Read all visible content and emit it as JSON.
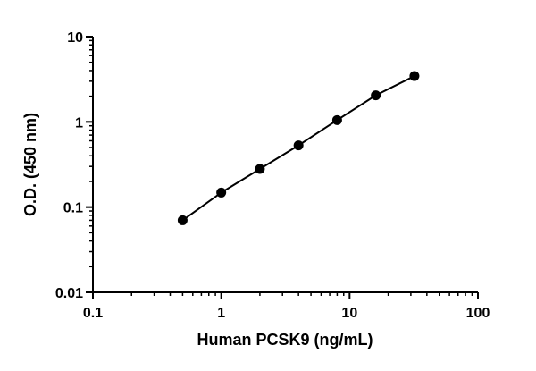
{
  "chart_data": {
    "type": "scatter",
    "title": "",
    "xlabel": "Human PCSK9 (ng/mL)",
    "ylabel": "O.D. (450 nm)",
    "xscale": "log",
    "yscale": "log",
    "xlim": [
      0.1,
      100
    ],
    "ylim": [
      0.01,
      10
    ],
    "x_ticks": [
      {
        "value": 0.1,
        "label": "0.1"
      },
      {
        "value": 1,
        "label": "1"
      },
      {
        "value": 10,
        "label": "10"
      },
      {
        "value": 100,
        "label": "100"
      }
    ],
    "y_ticks": [
      {
        "value": 0.01,
        "label": "0.01"
      },
      {
        "value": 0.1,
        "label": "0.1"
      },
      {
        "value": 1,
        "label": "1"
      },
      {
        "value": 10,
        "label": "10"
      }
    ],
    "grid": false,
    "legend": "none",
    "series": [
      {
        "x": [
          0.5,
          1,
          2,
          4,
          8,
          16,
          32
        ],
        "y": [
          0.07,
          0.148,
          0.28,
          0.53,
          1.05,
          2.05,
          3.45
        ],
        "color": "#000000",
        "marker": "circle",
        "fit_line": true
      }
    ]
  }
}
